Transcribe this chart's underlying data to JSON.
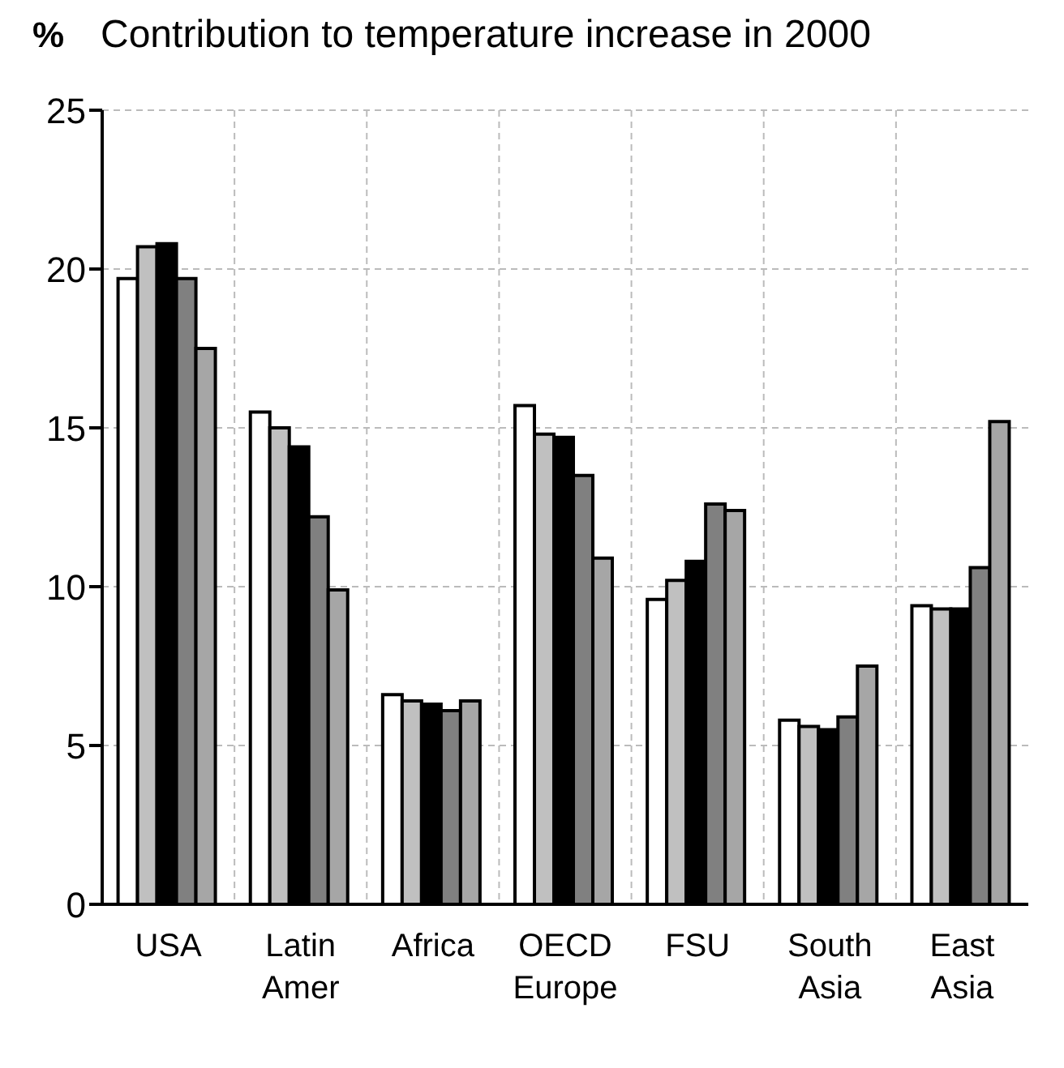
{
  "chart_data": {
    "type": "bar",
    "title": "Contribution to temperature increase in 2000",
    "ylabel": "%",
    "categories": [
      "USA",
      "Latin Amer",
      "Africa",
      "OECD Europe",
      "FSU",
      "South Asia",
      "East Asia"
    ],
    "series": [
      {
        "color": "#ffffff",
        "values": [
          19.7,
          15.5,
          6.6,
          15.7,
          9.6,
          5.8,
          9.4
        ]
      },
      {
        "color": "#c0c0c0",
        "values": [
          20.7,
          15.0,
          6.4,
          14.8,
          10.2,
          5.6,
          9.3
        ]
      },
      {
        "color": "#000000",
        "values": [
          20.8,
          14.4,
          6.3,
          14.7,
          10.8,
          5.5,
          9.3
        ]
      },
      {
        "color": "#808080",
        "values": [
          19.7,
          12.2,
          6.1,
          13.5,
          12.6,
          5.9,
          10.6
        ]
      },
      {
        "color": "#a6a6a6",
        "values": [
          17.5,
          9.9,
          6.4,
          10.9,
          12.4,
          7.5,
          15.2
        ]
      }
    ],
    "ylim": [
      0,
      25
    ],
    "yticks": [
      0,
      5,
      10,
      15,
      20,
      25
    ],
    "grid": true
  }
}
